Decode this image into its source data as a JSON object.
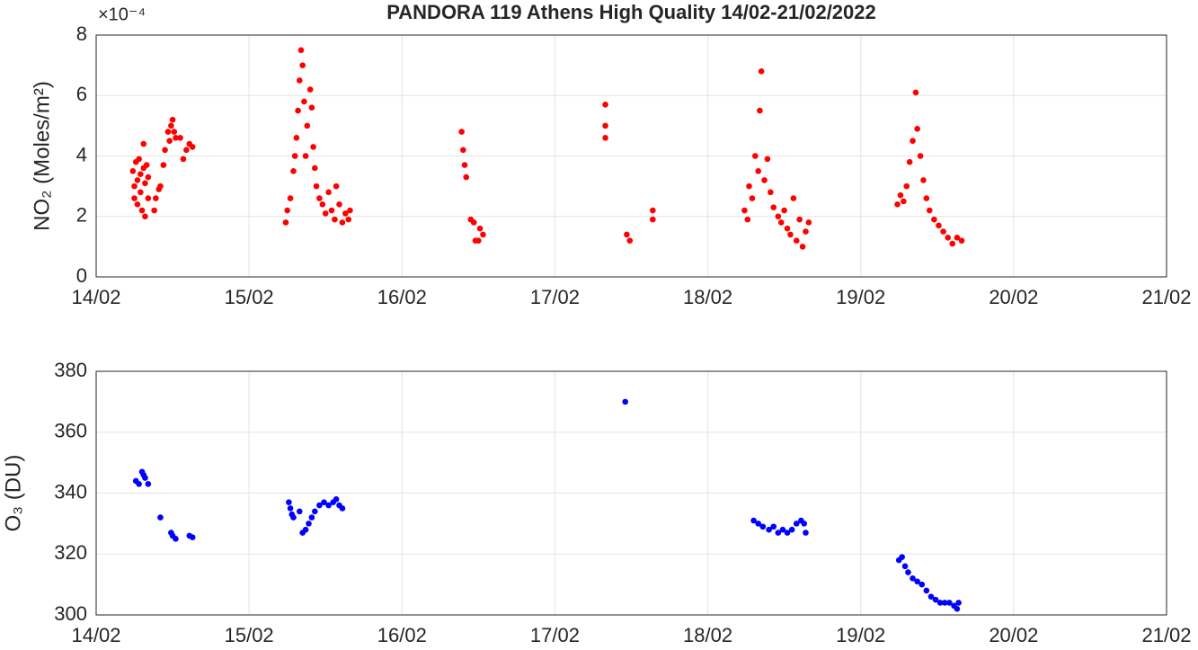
{
  "chart_data": [
    {
      "type": "scatter",
      "title": "PANDORA 119 Athens High Quality 14/02-21/02/2022",
      "y_label": "NO₂ (Moles/m²)",
      "y_exponent": "×10⁻⁴",
      "color": "#ff0000",
      "grid": true,
      "xlim": [
        0,
        7
      ],
      "xticks": [
        {
          "value": 0,
          "label": "14/02"
        },
        {
          "value": 1,
          "label": "15/02"
        },
        {
          "value": 2,
          "label": "16/02"
        },
        {
          "value": 3,
          "label": "17/02"
        },
        {
          "value": 4,
          "label": "18/02"
        },
        {
          "value": 5,
          "label": "19/02"
        },
        {
          "value": 6,
          "label": "20/02"
        },
        {
          "value": 7,
          "label": "21/02"
        }
      ],
      "ylim": [
        0,
        8
      ],
      "yticks": [
        0,
        2,
        4,
        6,
        8
      ],
      "x": [
        0.24,
        0.25,
        0.25,
        0.26,
        0.27,
        0.27,
        0.28,
        0.29,
        0.29,
        0.3,
        0.31,
        0.31,
        0.32,
        0.32,
        0.33,
        0.34,
        0.34,
        0.38,
        0.39,
        0.41,
        0.42,
        0.44,
        0.45,
        0.47,
        0.48,
        0.49,
        0.5,
        0.51,
        0.52,
        0.55,
        0.57,
        0.59,
        0.61,
        0.63,
        1.24,
        1.25,
        1.27,
        1.29,
        1.3,
        1.31,
        1.32,
        1.33,
        1.34,
        1.35,
        1.36,
        1.37,
        1.38,
        1.4,
        1.41,
        1.42,
        1.43,
        1.44,
        1.46,
        1.48,
        1.5,
        1.52,
        1.54,
        1.56,
        1.57,
        1.59,
        1.61,
        1.63,
        1.65,
        1.66,
        2.39,
        2.4,
        2.41,
        2.42,
        2.45,
        2.47,
        2.48,
        2.5,
        2.51,
        2.53,
        3.33,
        3.33,
        3.33,
        3.47,
        3.49,
        3.64,
        3.64,
        4.24,
        4.26,
        4.27,
        4.29,
        4.31,
        4.33,
        4.34,
        4.35,
        4.37,
        4.39,
        4.41,
        4.43,
        4.46,
        4.48,
        4.5,
        4.52,
        4.54,
        4.56,
        4.58,
        4.6,
        4.62,
        4.64,
        4.66,
        5.24,
        5.26,
        5.28,
        5.3,
        5.32,
        5.34,
        5.36,
        5.37,
        5.39,
        5.41,
        5.43,
        5.45,
        5.48,
        5.51,
        5.54,
        5.57,
        5.6,
        5.63,
        5.66
      ],
      "values": [
        3.5,
        3.0,
        2.6,
        3.8,
        3.2,
        2.4,
        3.9,
        2.8,
        3.4,
        2.2,
        3.6,
        4.4,
        2.0,
        3.1,
        3.7,
        2.6,
        3.3,
        2.2,
        2.6,
        2.9,
        3.0,
        3.7,
        4.2,
        4.8,
        4.5,
        5.0,
        5.2,
        4.8,
        4.6,
        4.6,
        3.9,
        4.2,
        4.4,
        4.3,
        1.8,
        2.2,
        2.6,
        3.5,
        4.0,
        4.6,
        5.5,
        6.5,
        7.5,
        7.0,
        5.8,
        4.0,
        5.0,
        6.2,
        5.6,
        4.3,
        3.6,
        3.0,
        2.6,
        2.4,
        2.1,
        2.8,
        2.2,
        1.9,
        3.0,
        2.4,
        1.8,
        2.1,
        1.9,
        2.2,
        4.8,
        4.2,
        3.7,
        3.3,
        1.9,
        1.8,
        1.2,
        1.2,
        1.6,
        1.4,
        5.7,
        5.0,
        4.6,
        1.4,
        1.2,
        2.2,
        1.9,
        2.2,
        1.9,
        3.0,
        2.6,
        4.0,
        3.5,
        5.5,
        6.8,
        3.2,
        3.9,
        2.8,
        2.3,
        2.0,
        1.8,
        2.2,
        1.6,
        1.4,
        2.6,
        1.2,
        1.9,
        1.0,
        1.5,
        1.8,
        2.4,
        2.7,
        2.5,
        3.0,
        3.8,
        4.5,
        6.1,
        4.9,
        4.0,
        3.2,
        2.6,
        2.2,
        1.9,
        1.7,
        1.5,
        1.3,
        1.1,
        1.3,
        1.2
      ]
    },
    {
      "type": "scatter",
      "y_label": "O₃ (DU)",
      "color": "#0000ff",
      "grid": true,
      "xlim": [
        0,
        7
      ],
      "xticks": [
        {
          "value": 0,
          "label": "14/02"
        },
        {
          "value": 1,
          "label": "15/02"
        },
        {
          "value": 2,
          "label": "16/02"
        },
        {
          "value": 3,
          "label": "17/02"
        },
        {
          "value": 4,
          "label": "18/02"
        },
        {
          "value": 5,
          "label": "19/02"
        },
        {
          "value": 6,
          "label": "20/02"
        },
        {
          "value": 7,
          "label": "21/02"
        }
      ],
      "ylim": [
        300,
        380
      ],
      "yticks": [
        300,
        320,
        340,
        360,
        380
      ],
      "x": [
        0.26,
        0.28,
        0.3,
        0.31,
        0.32,
        0.34,
        0.42,
        0.49,
        0.5,
        0.52,
        0.61,
        0.63,
        1.26,
        1.27,
        1.28,
        1.29,
        1.33,
        1.35,
        1.37,
        1.39,
        1.41,
        1.43,
        1.46,
        1.49,
        1.52,
        1.55,
        1.57,
        1.59,
        1.61,
        3.46,
        4.3,
        4.33,
        4.36,
        4.4,
        4.43,
        4.46,
        4.49,
        4.52,
        4.55,
        4.58,
        4.61,
        4.63,
        4.64,
        5.25,
        5.27,
        5.29,
        5.31,
        5.34,
        5.37,
        5.4,
        5.43,
        5.46,
        5.49,
        5.52,
        5.55,
        5.58,
        5.61,
        5.63,
        5.64
      ],
      "values": [
        344,
        343,
        347,
        346,
        345,
        343,
        332,
        327,
        326,
        325,
        326,
        325.5,
        337,
        335,
        333,
        332,
        334,
        327,
        328,
        330,
        332,
        334,
        336,
        337,
        336,
        337,
        338,
        336,
        335,
        370,
        331,
        330,
        329,
        328,
        329,
        327,
        328,
        327,
        328,
        330,
        331,
        330,
        327,
        318,
        319,
        316,
        314,
        312,
        311,
        310,
        308,
        306,
        305,
        304,
        304,
        304,
        303,
        302,
        304
      ]
    }
  ]
}
